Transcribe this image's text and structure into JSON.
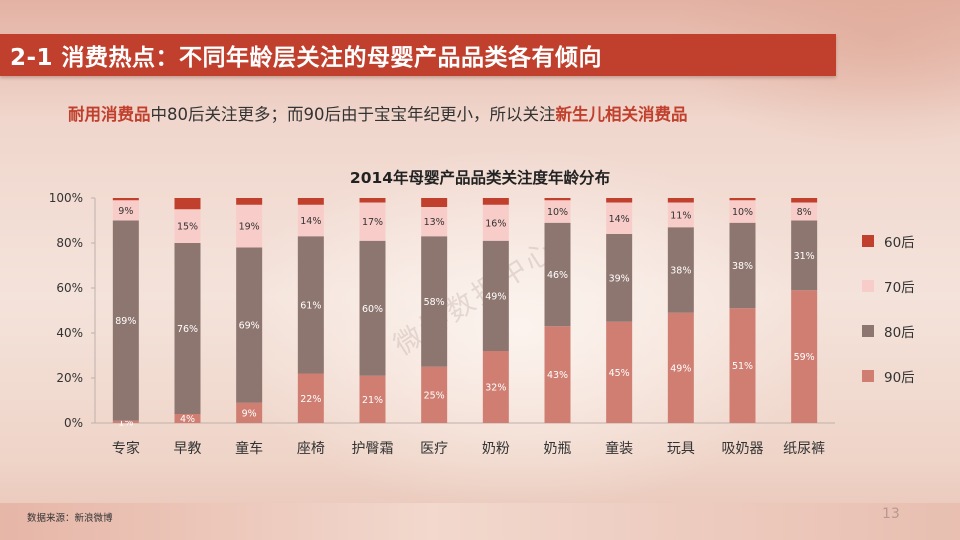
{
  "slide": {
    "title": "2-1 消费热点：不同年龄层关注的母婴产品品类各有倾向",
    "subtitle_parts": [
      {
        "text": "耐用消费品",
        "highlight": true
      },
      {
        "text": "中80后关注更多；而90后由于宝宝年纪更小，所以关注",
        "highlight": false
      },
      {
        "text": "新生儿相关消费品",
        "highlight": true
      }
    ],
    "source": "数据来源：新浪微博",
    "page_number": "13",
    "watermark": "微博数据中心"
  },
  "chart_data": {
    "type": "bar",
    "stacked": true,
    "title": "2014年母婴产品品类关注度年龄分布",
    "categories": [
      "专家",
      "早教",
      "童车",
      "座椅",
      "护臀霜",
      "医疗",
      "奶粉",
      "奶瓶",
      "童装",
      "玩具",
      "吸奶器",
      "纸尿裤"
    ],
    "series": [
      {
        "name": "90后",
        "color": "#d07e72",
        "values": [
          1,
          4,
          9,
          22,
          21,
          25,
          32,
          43,
          45,
          49,
          51,
          59
        ]
      },
      {
        "name": "80后",
        "color": "#8e7670",
        "values": [
          89,
          76,
          69,
          61,
          60,
          58,
          49,
          46,
          39,
          38,
          38,
          31
        ]
      },
      {
        "name": "70后",
        "color": "#f8ccc8",
        "values": [
          9,
          15,
          19,
          14,
          17,
          13,
          16,
          10,
          14,
          11,
          10,
          8
        ]
      },
      {
        "name": "60后",
        "color": "#c1402d",
        "values": [
          1,
          5,
          3,
          3,
          2,
          4,
          3,
          1,
          2,
          2,
          1,
          2
        ]
      }
    ],
    "data_labels": {
      "90后": [
        "1%",
        "4%",
        "9%",
        "22%",
        "21%",
        "25%",
        "32%",
        "43%",
        "45%",
        "49%",
        "51%",
        "59%"
      ],
      "80后": [
        "89%",
        "76%",
        "69%",
        "61%",
        "60%",
        "58%",
        "49%",
        "46%",
        "39%",
        "38%",
        "38%",
        "31%"
      ],
      "70后": [
        "9%",
        "15%",
        "19%",
        "14%",
        "17%",
        "13%",
        "16%",
        "10%",
        "14%",
        "11%",
        "10%",
        "8%"
      ]
    },
    "y_ticks": [
      "0%",
      "20%",
      "40%",
      "60%",
      "80%",
      "100%"
    ],
    "ylim": [
      0,
      100
    ],
    "legend_placement": "right",
    "legend_order": [
      "60后",
      "70后",
      "80后",
      "90后"
    ],
    "grid": false
  }
}
